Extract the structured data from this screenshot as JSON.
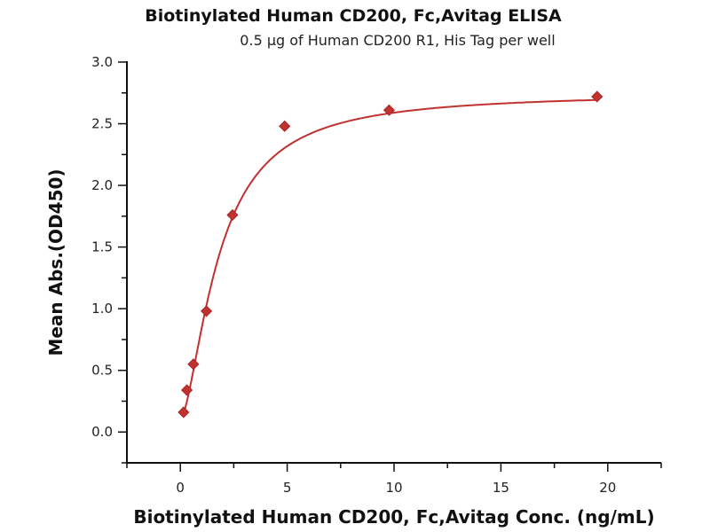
{
  "chart_data": {
    "type": "scatter",
    "title": "Biotinylated Human CD200, Fc,Avitag ELISA",
    "subtitle": "0.5 μg of Human CD200 R1, His Tag per well",
    "xlabel": "Biotinylated Human CD200, Fc,Avitag Conc. (ng/mL)",
    "ylabel": "Mean Abs.(OD450)",
    "xlim": [
      -2.5,
      22.5
    ],
    "ylim": [
      -0.25,
      3.0
    ],
    "xticks": [
      "0",
      "5",
      "10",
      "15",
      "20"
    ],
    "yticks": [
      "0.0",
      "0.5",
      "1.0",
      "1.5",
      "2.0",
      "2.5",
      "3.0"
    ],
    "grid": false,
    "fit_line": true,
    "color": "#c0312f",
    "marker": "diamond",
    "x": [
      0.152,
      0.305,
      0.61,
      1.22,
      2.44,
      4.88,
      9.77,
      19.5
    ],
    "y": [
      0.16,
      0.34,
      0.55,
      0.98,
      1.76,
      2.48,
      2.61,
      2.72
    ]
  }
}
